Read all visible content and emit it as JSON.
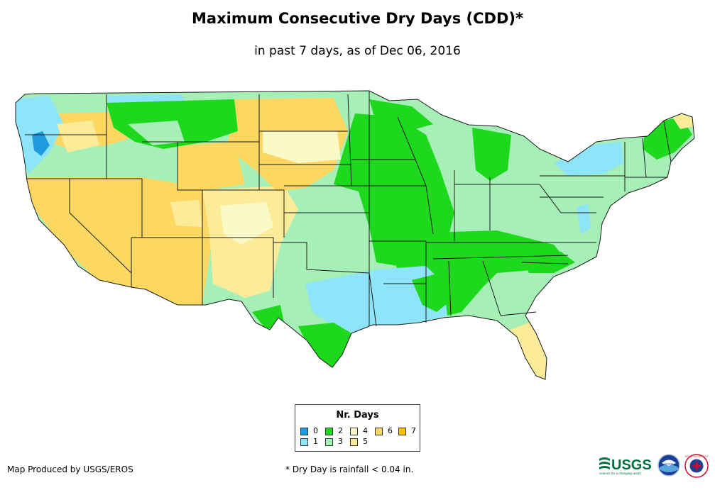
{
  "title": "Maximum Consecutive Dry Days (CDD)*",
  "subtitle": "in past 7 days, as of Dec 06, 2016",
  "legend": {
    "title": "Nr. Days",
    "items": [
      {
        "label": "0",
        "color": "#1f9ae0"
      },
      {
        "label": "1",
        "color": "#8ee4f8"
      },
      {
        "label": "2",
        "color": "#1ed81e"
      },
      {
        "label": "3",
        "color": "#a6f0b8"
      },
      {
        "label": "4",
        "color": "#fafac8"
      },
      {
        "label": "5",
        "color": "#fcec9a"
      },
      {
        "label": "6",
        "color": "#fcd862"
      },
      {
        "label": "7",
        "color": "#fcc000"
      }
    ]
  },
  "credit": "Map Produced by USGS/EROS",
  "footnote": "* Dry Day is rainfall < 0.04 in.",
  "logos": {
    "usgs": "USGS",
    "usgs_tagline": "science for a changing world",
    "noaa": "noaa",
    "nws": "NATIONAL WEATHER SERVICE"
  },
  "colors": {
    "state_border": "#1a1a1a"
  }
}
